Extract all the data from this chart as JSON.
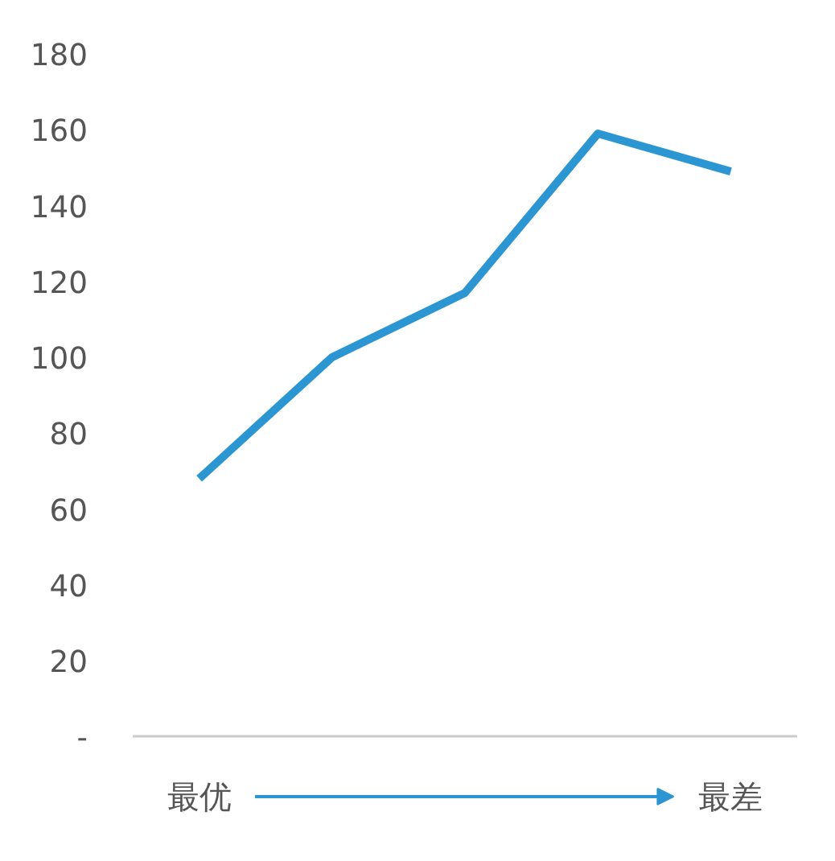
{
  "chart_data": {
    "type": "line",
    "categories": [
      null,
      null,
      null,
      null,
      null
    ],
    "series": [
      {
        "color": "#2c96d2",
        "values": [
          68,
          100,
          117,
          159,
          149
        ]
      }
    ],
    "ylim": [
      0,
      180
    ],
    "yticks": [
      {
        "value": 0,
        "label": "-"
      },
      20,
      40,
      60,
      80,
      100,
      120,
      140,
      160,
      180
    ],
    "grid": false,
    "marker": "none",
    "line_style": "solid",
    "annotations": [
      "最优",
      "最差"
    ]
  }
}
